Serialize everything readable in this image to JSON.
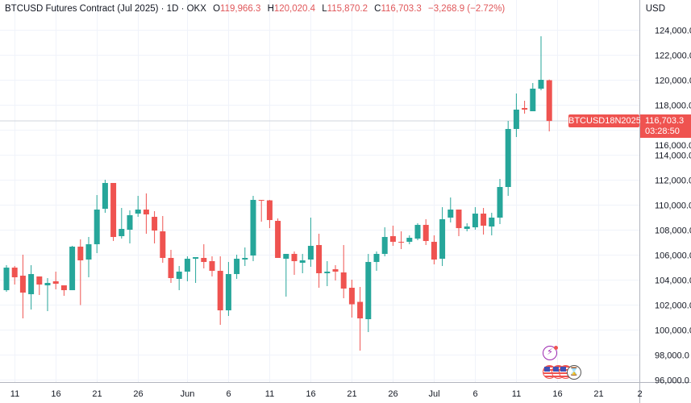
{
  "header": {
    "title": "BTCUSD Futures Contract (Jul 2025) · 1D · OKX",
    "open_label": "O",
    "open": "119,966.3",
    "high_label": "H",
    "high": "120,020.4",
    "low_label": "L",
    "low": "115,870.2",
    "close_label": "C",
    "close": "116,703.3",
    "change": "−3,268.9 (−2.72%)"
  },
  "currency": "USD",
  "symbol_tag": "BTCUSD18N2025",
  "last_price": "116,703.3",
  "countdown": "03:28:50",
  "colors": {
    "up": "#26a69a",
    "down": "#ef5350",
    "grid": "#f0f3fa",
    "axis": "#b2b5be",
    "events": "#9c27b0"
  },
  "icons": [
    "lightning-event-icon",
    "us-flag-icon",
    "us-flag-icon",
    "us-flag-icon",
    "hourglass-icon"
  ],
  "chart_data": {
    "type": "candlestick",
    "title": "BTCUSD Futures Contract (Jul 2025) · 1D · OKX",
    "interval": "1D",
    "start_date": "2025-05-10",
    "end_date": "2025-07-15",
    "ylim": [
      95800,
      125200
    ],
    "yticks": [
      "96,000.0",
      "98,000.0",
      "100,000.0",
      "102,000.0",
      "104,000.0",
      "106,000.0",
      "108,000.0",
      "110,000.0",
      "112,000.0",
      "114,000.0",
      "116,000.0",
      "118,000.0",
      "120,000.0",
      "122,000.0",
      "124,000.0"
    ],
    "ytick_values": [
      96000,
      98000,
      100000,
      102000,
      104000,
      106000,
      108000,
      110000,
      112000,
      114000,
      116000,
      118000,
      120000,
      122000,
      124000
    ],
    "xticks": [
      {
        "label": "11",
        "day": 1
      },
      {
        "label": "16",
        "day": 6
      },
      {
        "label": "21",
        "day": 11
      },
      {
        "label": "26",
        "day": 16
      },
      {
        "label": "Jun",
        "day": 22
      },
      {
        "label": "6",
        "day": 27
      },
      {
        "label": "11",
        "day": 32
      },
      {
        "label": "16",
        "day": 37
      },
      {
        "label": "21",
        "day": 42
      },
      {
        "label": "26",
        "day": 47
      },
      {
        "label": "Jul",
        "day": 52
      },
      {
        "label": "6",
        "day": 57
      },
      {
        "label": "11",
        "day": 62
      },
      {
        "label": "16",
        "day": 67
      },
      {
        "label": "21",
        "day": 72
      },
      {
        "label": "2",
        "day": 77
      }
    ],
    "ohlc": [
      [
        103160,
        105160,
        103031,
        104966
      ],
      [
        104966,
        105095,
        103612,
        104192
      ],
      [
        104321,
        105999,
        100902,
        102966
      ],
      [
        102837,
        105160,
        101611,
        104450
      ],
      [
        104257,
        104257,
        102773,
        103612
      ],
      [
        103547,
        104128,
        101482,
        103741
      ],
      [
        103870,
        104644,
        103225,
        103676
      ],
      [
        103547,
        103547,
        102709,
        103160
      ],
      [
        103160,
        106708,
        103160,
        106644
      ],
      [
        106644,
        107225,
        101967,
        105547
      ],
      [
        105612,
        107418,
        104192,
        106837
      ],
      [
        106837,
        110774,
        106128,
        109612
      ],
      [
        109676,
        111999,
        109354,
        111741
      ],
      [
        111741,
        111741,
        107096,
        107418
      ],
      [
        107483,
        109741,
        107289,
        108063
      ],
      [
        107999,
        109547,
        106902,
        109160
      ],
      [
        109289,
        110709,
        109031,
        109612
      ],
      [
        109612,
        110903,
        107676,
        109225
      ],
      [
        109031,
        109483,
        106902,
        107934
      ],
      [
        107870,
        109096,
        105354,
        105741
      ],
      [
        105741,
        106386,
        103741,
        104128
      ],
      [
        104063,
        105095,
        103160,
        104644
      ],
      [
        104644,
        105870,
        103870,
        105676
      ],
      [
        105676,
        105805,
        103741,
        105805
      ],
      [
        105741,
        106837,
        104902,
        105418
      ],
      [
        105483,
        105870,
        104257,
        104708
      ],
      [
        104708,
        105870,
        100386,
        101547
      ],
      [
        101547,
        105418,
        101096,
        104450
      ],
      [
        104450,
        105999,
        104063,
        105676
      ],
      [
        105612,
        106579,
        105095,
        105741
      ],
      [
        105934,
        110709,
        105483,
        110386
      ],
      [
        110386,
        110386,
        108644,
        110322
      ],
      [
        110350,
        110386,
        108128,
        108773
      ],
      [
        108709,
        108902,
        105741,
        105741
      ],
      [
        105676,
        106063,
        102644,
        106063
      ],
      [
        106063,
        106257,
        104386,
        105483
      ],
      [
        105354,
        106063,
        104515,
        105547
      ],
      [
        105612,
        108967,
        105031,
        106708
      ],
      [
        106773,
        107676,
        103354,
        104515
      ],
      [
        104515,
        105483,
        103483,
        104644
      ],
      [
        104837,
        105160,
        103934,
        104644
      ],
      [
        104580,
        106773,
        102515,
        103289
      ],
      [
        103354,
        103999,
        100967,
        102031
      ],
      [
        102225,
        103418,
        98322,
        100902
      ],
      [
        100838,
        106063,
        99806,
        105418
      ],
      [
        105418,
        106257,
        104708,
        106063
      ],
      [
        106063,
        108193,
        105870,
        107418
      ],
      [
        107483,
        108322,
        106708,
        107031
      ],
      [
        107031,
        107870,
        106450,
        106970
      ],
      [
        107031,
        107547,
        106837,
        107354
      ],
      [
        107289,
        108515,
        107160,
        108386
      ],
      [
        108386,
        108838,
        106773,
        107096
      ],
      [
        107031,
        107547,
        105225,
        105612
      ],
      [
        105676,
        109805,
        105095,
        108838
      ],
      [
        108967,
        110580,
        108580,
        109612
      ],
      [
        109612,
        109612,
        107483,
        108128
      ],
      [
        108063,
        108515,
        107870,
        108257
      ],
      [
        108193,
        109805,
        107999,
        109289
      ],
      [
        109289,
        109741,
        107612,
        108322
      ],
      [
        108257,
        109354,
        107547,
        108967
      ],
      [
        108967,
        112064,
        108451,
        111419
      ],
      [
        111419,
        116709,
        110709,
        116064
      ],
      [
        116064,
        118903,
        115419,
        117612
      ],
      [
        117741,
        118322,
        117290,
        117612
      ],
      [
        117483,
        119741,
        117483,
        119290
      ],
      [
        119290,
        123484,
        119161,
        119999
      ],
      [
        119966.3,
        120020.4,
        115870.2,
        116703.3
      ]
    ],
    "last_price": 116703.3
  }
}
